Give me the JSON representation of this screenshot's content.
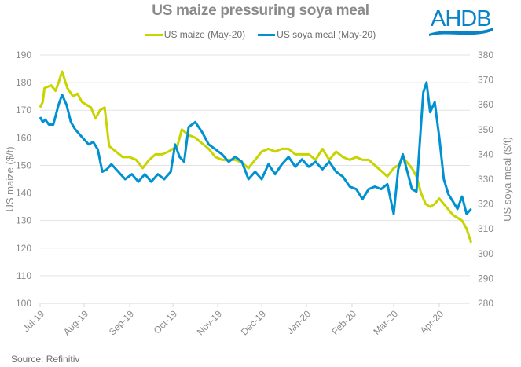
{
  "header": {
    "title": "US maize pressuring soya meal",
    "logo_text": "AHDB"
  },
  "footer": {
    "source": "Source: Refinitiv"
  },
  "colors": {
    "maize": "#c8d400",
    "soya": "#0091d2",
    "text": "#8a8a8a",
    "grid": "#e3e3e3",
    "logo": "#0a82c8"
  },
  "chart_data": {
    "type": "line",
    "title": "US maize pressuring soya meal",
    "xlabel": "",
    "ylabel": "US maize ($/t)",
    "y2label": "US soya meal ($/t)",
    "ylim": [
      100,
      190
    ],
    "y2lim": [
      280,
      380
    ],
    "yticks": [
      100,
      110,
      120,
      130,
      140,
      150,
      160,
      170,
      180,
      190
    ],
    "y2ticks": [
      280,
      290,
      300,
      310,
      320,
      330,
      340,
      350,
      360,
      370,
      380
    ],
    "xticks": [
      "Jul-19",
      "Aug-19",
      "Sep-19",
      "Oct-19",
      "Nov-19",
      "Dec-19",
      "Jan-20",
      "Feb-20",
      "Mar-20",
      "Apr-20"
    ],
    "xrange_months": [
      0,
      9.7
    ],
    "grid": true,
    "legend": "top-center",
    "series": [
      {
        "name": "US maize (May-20)",
        "axis": "left",
        "x": [
          0,
          0.06,
          0.1,
          0.25,
          0.35,
          0.42,
          0.5,
          0.62,
          0.75,
          0.85,
          0.95,
          1.05,
          1.15,
          1.25,
          1.35,
          1.45,
          1.55,
          1.7,
          1.85,
          2.0,
          2.15,
          2.3,
          2.45,
          2.6,
          2.75,
          2.9,
          3.0,
          3.1,
          3.2,
          3.35,
          3.5,
          3.65,
          3.8,
          3.95,
          4.1,
          4.25,
          4.4,
          4.55,
          4.7,
          4.85,
          5.0,
          5.15,
          5.3,
          5.45,
          5.6,
          5.75,
          5.9,
          6.05,
          6.2,
          6.35,
          6.5,
          6.65,
          6.8,
          6.95,
          7.1,
          7.25,
          7.4,
          7.55,
          7.7,
          7.85,
          8.0,
          8.1,
          8.2,
          8.3,
          8.4,
          8.5,
          8.6,
          8.7,
          8.8,
          8.9,
          9.0,
          9.1,
          9.2,
          9.3,
          9.4,
          9.5,
          9.6,
          9.7
        ],
        "values": [
          171,
          173,
          178,
          179,
          177,
          180,
          184,
          178,
          175,
          176,
          173,
          172,
          171,
          167,
          170,
          171,
          157,
          155,
          153,
          153,
          152,
          149,
          152,
          154,
          154,
          155,
          156,
          157,
          163,
          161,
          160,
          158,
          156,
          153,
          152,
          152,
          152,
          151,
          149,
          152,
          155,
          156,
          155,
          156,
          156,
          154,
          154,
          154,
          152,
          156,
          152,
          155,
          153,
          152,
          153,
          152,
          152,
          150,
          148,
          146,
          149,
          150,
          153,
          151,
          149,
          146,
          140,
          136,
          135,
          136,
          138,
          136,
          134,
          132,
          131,
          130,
          127,
          122
        ]
      },
      {
        "name": "US soya meal (May-20)",
        "axis": "right",
        "x": [
          0,
          0.06,
          0.12,
          0.2,
          0.3,
          0.42,
          0.5,
          0.6,
          0.7,
          0.8,
          0.9,
          1.0,
          1.1,
          1.2,
          1.3,
          1.4,
          1.5,
          1.6,
          1.75,
          1.9,
          2.05,
          2.2,
          2.35,
          2.5,
          2.65,
          2.8,
          2.95,
          3.05,
          3.15,
          3.25,
          3.35,
          3.5,
          3.65,
          3.8,
          3.95,
          4.1,
          4.25,
          4.4,
          4.55,
          4.7,
          4.85,
          5.0,
          5.15,
          5.3,
          5.45,
          5.6,
          5.75,
          5.9,
          6.05,
          6.2,
          6.35,
          6.5,
          6.65,
          6.8,
          6.95,
          7.1,
          7.25,
          7.4,
          7.55,
          7.7,
          7.85,
          8.0,
          8.1,
          8.2,
          8.3,
          8.4,
          8.5,
          8.6,
          8.65,
          8.72,
          8.8,
          8.9,
          9.0,
          9.1,
          9.2,
          9.3,
          9.4,
          9.5,
          9.6,
          9.7
        ],
        "values": [
          355,
          353,
          354,
          352,
          352,
          360,
          364,
          360,
          353,
          350,
          348,
          346,
          344,
          345,
          342,
          333,
          334,
          336,
          333,
          330,
          332,
          329,
          332,
          329,
          332,
          330,
          333,
          344,
          339,
          337,
          351,
          353,
          349,
          344,
          342,
          340,
          337,
          339,
          337,
          330,
          333,
          330,
          336,
          332,
          336,
          339,
          335,
          338,
          335,
          337,
          334,
          337,
          333,
          331,
          327,
          326,
          322,
          326,
          327,
          326,
          328,
          316,
          334,
          340,
          333,
          326,
          325,
          352,
          365,
          369,
          357,
          361,
          347,
          330,
          324,
          321,
          318,
          323,
          316,
          318
        ]
      }
    ]
  }
}
